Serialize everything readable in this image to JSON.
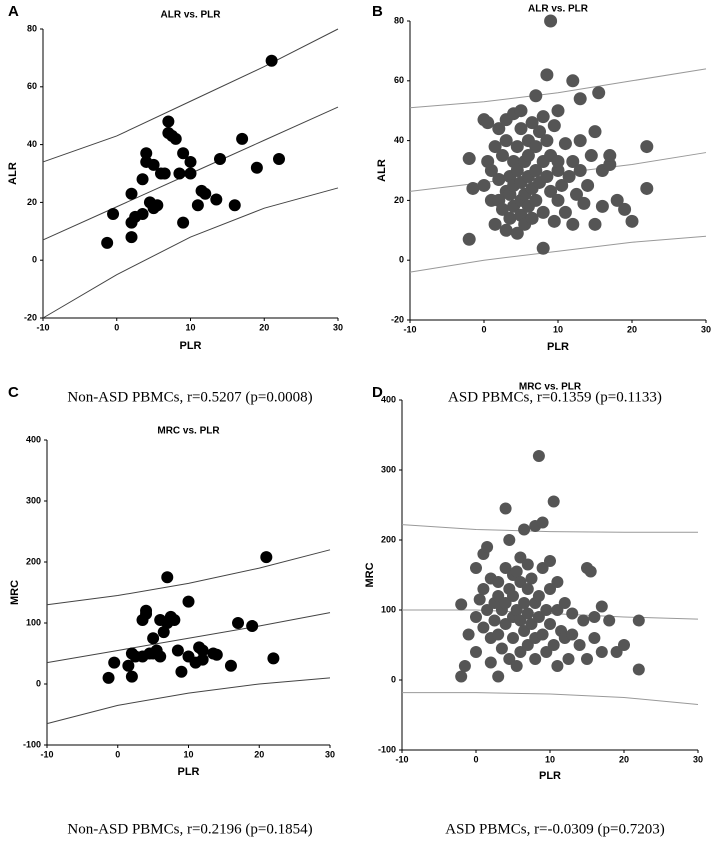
{
  "chart_data": [
    {
      "type": "scatter",
      "label": "A",
      "title": "ALR vs. PLR",
      "x_label": "PLR",
      "y_label": "ALR",
      "caption": "Non-ASD PBMCs, r=0.5207 (p=0.0008)",
      "xlim": [
        -10,
        30
      ],
      "xticks": [
        -10,
        0,
        10,
        20,
        30
      ],
      "ylim": [
        -20,
        80
      ],
      "yticks": [
        -20,
        0,
        20,
        40,
        60,
        80
      ],
      "color": "#000000",
      "line_color": "#444444",
      "x": [
        -1.3,
        -0.5,
        2,
        2,
        2,
        2.5,
        3.5,
        3.5,
        4,
        4,
        4.5,
        5,
        5,
        5.5,
        6,
        6.5,
        7,
        7,
        7.5,
        8,
        8.5,
        9,
        10,
        10,
        9,
        11,
        11.5,
        12,
        13.5,
        14,
        16,
        17,
        19,
        21,
        22
      ],
      "values": [
        6,
        16,
        13,
        23,
        8,
        15,
        28,
        16,
        37,
        34,
        20,
        33,
        18,
        19,
        30,
        30,
        48,
        44,
        43,
        42,
        30,
        37,
        34,
        30,
        13,
        19,
        24,
        23,
        21,
        35,
        19,
        42,
        32,
        69,
        35
      ],
      "lines": [
        {
          "x": [
            -10,
            0,
            10,
            20,
            30
          ],
          "values": [
            34,
            43,
            55,
            67,
            80
          ]
        },
        {
          "x": [
            -10,
            0,
            10,
            20,
            30
          ],
          "values": [
            7,
            18.5,
            30,
            41.5,
            53
          ]
        },
        {
          "x": [
            -10,
            0,
            10,
            20,
            30
          ],
          "values": [
            -20,
            -5,
            8,
            18,
            25
          ]
        }
      ]
    },
    {
      "type": "scatter",
      "label": "B",
      "title": "ALR vs. PLR",
      "x_label": "PLR",
      "y_label": "ALR",
      "caption": "ASD PBMCs, r=0.1359 (p=0.1133)",
      "xlim": [
        -10,
        30
      ],
      "xticks": [
        -10,
        0,
        10,
        20,
        30
      ],
      "ylim": [
        -20,
        80
      ],
      "yticks": [
        -20,
        0,
        20,
        40,
        60,
        80
      ],
      "color": "#555555",
      "line_color": "#999999",
      "x": [
        -2,
        -2,
        -1.5,
        0,
        0,
        0.5,
        0.5,
        1,
        1,
        1.5,
        1.5,
        2,
        2,
        2,
        2.5,
        2.5,
        3,
        3,
        3,
        3,
        3.5,
        3.5,
        3.5,
        4,
        4,
        4,
        4,
        4.5,
        4.5,
        4.5,
        5,
        5,
        5,
        5,
        5,
        5.5,
        5.5,
        5.5,
        6,
        6,
        6,
        6,
        6.5,
        6.5,
        6.5,
        7,
        7,
        7,
        7,
        7.5,
        7.5,
        8,
        8,
        8,
        8,
        8.5,
        8.5,
        8.5,
        9,
        9,
        9,
        9.5,
        9.5,
        10,
        10,
        10,
        10,
        10.5,
        11,
        11,
        11.5,
        12,
        12,
        12,
        12.5,
        13,
        13,
        13,
        13.5,
        14,
        14.5,
        15,
        15,
        15.5,
        16,
        16,
        17,
        17,
        18,
        19,
        20,
        22,
        22
      ],
      "values": [
        7,
        34,
        24,
        47,
        25,
        33,
        46,
        20,
        30,
        12,
        38,
        44,
        20,
        27,
        17,
        35,
        23,
        10,
        40,
        47,
        28,
        14,
        22,
        33,
        18,
        25,
        49,
        9,
        38,
        30,
        20,
        44,
        15,
        26,
        50,
        33,
        22,
        12,
        40,
        28,
        18,
        35,
        24,
        46,
        14,
        30,
        20,
        55,
        38,
        26,
        43,
        4,
        48,
        33,
        16,
        62,
        28,
        40,
        80,
        23,
        35,
        45,
        13,
        30,
        20,
        50,
        33,
        25,
        39,
        16,
        28,
        60,
        33,
        12,
        22,
        54,
        40,
        30,
        19,
        25,
        35,
        43,
        12,
        56,
        30,
        18,
        32,
        35,
        20,
        17,
        13,
        38,
        24
      ],
      "lines": [
        {
          "x": [
            -10,
            0,
            10,
            20,
            30
          ],
          "values": [
            51,
            53,
            56,
            60,
            64
          ]
        },
        {
          "x": [
            -10,
            0,
            10,
            20,
            30
          ],
          "values": [
            23,
            26,
            29,
            32,
            36
          ]
        },
        {
          "x": [
            -10,
            0,
            10,
            20,
            30
          ],
          "values": [
            -4,
            0,
            3,
            6,
            8
          ]
        }
      ]
    },
    {
      "type": "scatter",
      "label": "C",
      "title": "MRC vs. PLR",
      "x_label": "PLR",
      "y_label": "MRC",
      "caption": "Non-ASD PBMCs, r=0.2196 (p=0.1854)",
      "xlim": [
        -10,
        30
      ],
      "xticks": [
        -10,
        0,
        10,
        20,
        30
      ],
      "ylim": [
        -100,
        400
      ],
      "yticks": [
        -100,
        0,
        100,
        200,
        300,
        400
      ],
      "color": "#000000",
      "line_color": "#444444",
      "x": [
        -1.3,
        -0.5,
        1.5,
        2,
        2,
        2.5,
        3.5,
        3.5,
        4,
        4,
        4.5,
        5,
        5,
        5.5,
        6,
        6.5,
        7,
        7,
        7.5,
        8,
        8.5,
        9,
        10,
        10,
        11,
        11.5,
        12,
        13.5,
        14,
        16,
        17,
        19,
        21,
        22,
        6,
        12
      ],
      "values": [
        10,
        35,
        30,
        50,
        12,
        45,
        105,
        45,
        115,
        120,
        50,
        75,
        50,
        55,
        45,
        85,
        175,
        100,
        110,
        105,
        55,
        20,
        135,
        45,
        35,
        60,
        40,
        50,
        48,
        30,
        100,
        95,
        208,
        42,
        105,
        55
      ],
      "lines": [
        {
          "x": [
            -10,
            0,
            10,
            20,
            30
          ],
          "values": [
            130,
            145,
            165,
            190,
            220
          ]
        },
        {
          "x": [
            -10,
            0,
            10,
            20,
            30
          ],
          "values": [
            35,
            55,
            75,
            95,
            117
          ]
        },
        {
          "x": [
            -10,
            0,
            10,
            20,
            30
          ],
          "values": [
            -65,
            -35,
            -15,
            0,
            10
          ]
        }
      ]
    },
    {
      "type": "scatter",
      "label": "D",
      "title": "MRC vs. PLR",
      "x_label": "PLR",
      "y_label": "MRC",
      "caption": "ASD PBMCs, r=-0.0309 (p=0.7203)",
      "xlim": [
        -10,
        30
      ],
      "xticks": [
        -10,
        0,
        10,
        20,
        30
      ],
      "ylim": [
        -100,
        400
      ],
      "yticks": [
        -100,
        0,
        100,
        200,
        300,
        400
      ],
      "color": "#555555",
      "line_color": "#999999",
      "x": [
        -2,
        -2,
        -1.5,
        -1,
        0,
        0,
        0,
        0.5,
        1,
        1,
        1,
        1.5,
        1.5,
        2,
        2,
        2,
        2.5,
        2.5,
        3,
        3,
        3,
        3,
        3.5,
        3.5,
        4,
        4,
        4,
        4,
        4.5,
        4.5,
        4.5,
        5,
        5,
        5,
        5,
        5.5,
        5.5,
        5.5,
        6,
        6,
        6,
        6,
        6.5,
        6.5,
        6.5,
        7,
        7,
        7,
        7,
        7.5,
        7.5,
        8,
        8,
        8,
        8,
        8.5,
        8.5,
        8.5,
        9,
        9,
        9,
        9.5,
        9.5,
        10,
        10,
        10,
        10.5,
        10.5,
        11,
        11,
        11,
        11.5,
        12,
        12,
        12.5,
        13,
        13,
        14,
        14.5,
        15,
        15,
        15.5,
        16,
        16,
        17,
        17,
        18,
        19,
        20,
        22,
        22
      ],
      "values": [
        5,
        108,
        20,
        65,
        90,
        40,
        160,
        115,
        180,
        130,
        75,
        190,
        100,
        60,
        25,
        145,
        110,
        85,
        120,
        5,
        65,
        140,
        100,
        45,
        245,
        160,
        80,
        110,
        30,
        130,
        200,
        150,
        90,
        60,
        120,
        100,
        155,
        20,
        85,
        140,
        40,
        175,
        110,
        70,
        215,
        95,
        130,
        50,
        165,
        80,
        145,
        220,
        60,
        110,
        30,
        320,
        120,
        90,
        225,
        160,
        65,
        100,
        40,
        170,
        130,
        80,
        255,
        50,
        100,
        20,
        140,
        70,
        60,
        110,
        30,
        95,
        65,
        50,
        85,
        160,
        30,
        155,
        90,
        60,
        105,
        40,
        85,
        40,
        50,
        85,
        15
      ],
      "lines": [
        {
          "x": [
            -10,
            0,
            10,
            20,
            30
          ],
          "values": [
            222,
            215,
            212,
            211,
            211
          ]
        },
        {
          "x": [
            -10,
            0,
            10,
            20,
            30
          ],
          "values": [
            100,
            100,
            95,
            90,
            87
          ]
        },
        {
          "x": [
            -10,
            0,
            10,
            20,
            30
          ],
          "values": [
            -18,
            -18,
            -20,
            -25,
            -35
          ]
        }
      ]
    }
  ]
}
